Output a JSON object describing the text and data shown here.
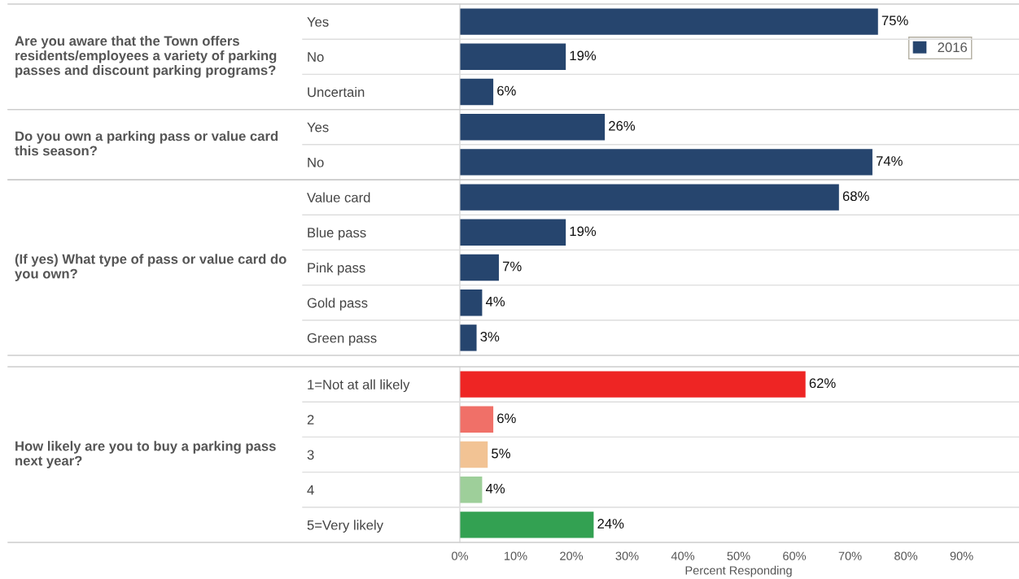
{
  "chart_data": [
    {
      "type": "bar",
      "orientation": "horizontal",
      "title": "Are you aware that the Town offers residents/employees a variety of parking passes and discount parking programs?",
      "categories": [
        "Yes",
        "No",
        "Uncertain"
      ],
      "series": [
        {
          "name": "2016",
          "color": "#26456e",
          "values": [
            75,
            19,
            6
          ],
          "value_labels": [
            "75%",
            "19%",
            "6%"
          ]
        }
      ],
      "xlim": [
        0,
        100
      ],
      "legend": "top right",
      "tick_labels": "y"
    },
    {
      "type": "bar",
      "orientation": "horizontal",
      "title": "Do you own a parking pass or value card this season?",
      "categories": [
        "Yes",
        "No"
      ],
      "series": [
        {
          "color": "#26456e",
          "values": [
            26,
            74
          ],
          "value_labels": [
            "26%",
            "74%"
          ]
        }
      ],
      "xlim": [
        0,
        100
      ],
      "tick_labels": "y"
    },
    {
      "type": "bar",
      "orientation": "horizontal",
      "title": "(If yes) What type of pass or value card do you own?",
      "categories": [
        "Value card",
        "Blue pass",
        "Pink pass",
        "Gold pass",
        "Green pass"
      ],
      "series": [
        {
          "color": "#26456e",
          "values": [
            68,
            19,
            7,
            4,
            3
          ],
          "value_labels": [
            "68%",
            "19%",
            "7%",
            "4%",
            "3%"
          ]
        }
      ],
      "xlim": [
        0,
        100
      ],
      "tick_labels": "y"
    },
    {
      "type": "bar",
      "orientation": "horizontal",
      "title": "How likely are you to buy a parking pass next year?",
      "categories": [
        "1=Not at all likely",
        "2",
        "3",
        "4",
        "5=Very likely"
      ],
      "series": [
        {
          "colors": [
            "#ee2524",
            "#f07068",
            "#f2c394",
            "#9ecf9a",
            "#33a152"
          ],
          "values": [
            62,
            6,
            5,
            4,
            24
          ],
          "value_labels": [
            "62%",
            "6%",
            "5%",
            "4%",
            "24%"
          ]
        }
      ],
      "xlim": [
        0,
        100
      ],
      "xticks": [
        {
          "value": 0,
          "label": "0%"
        },
        {
          "value": 10,
          "label": "10%"
        },
        {
          "value": 20,
          "label": "20%"
        },
        {
          "value": 30,
          "label": "30%"
        },
        {
          "value": 40,
          "label": "40%"
        },
        {
          "value": 50,
          "label": "50%"
        },
        {
          "value": 60,
          "label": "60%"
        },
        {
          "value": 70,
          "label": "70%"
        },
        {
          "value": 80,
          "label": "80%"
        },
        {
          "value": 90,
          "label": "90%"
        }
      ],
      "xlabel": "Percent Responding"
    }
  ]
}
